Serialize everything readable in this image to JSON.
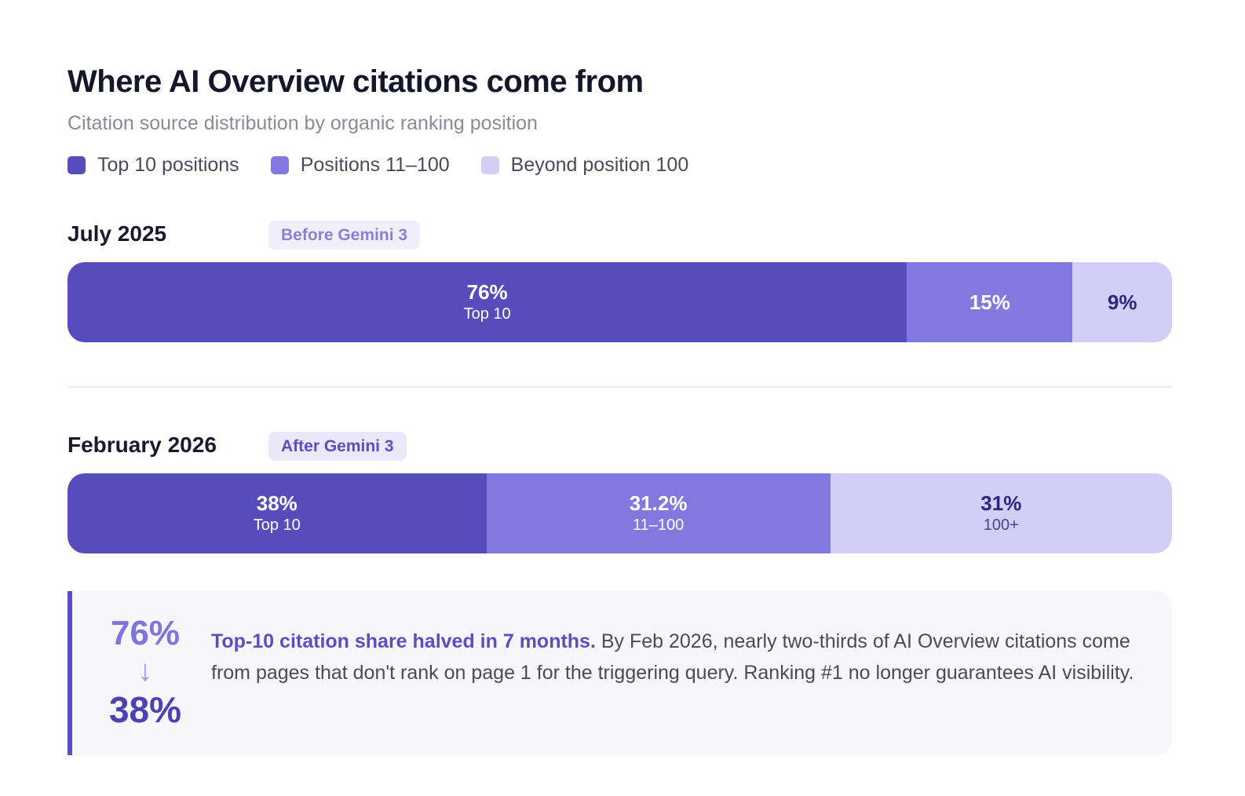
{
  "chart_data": {
    "type": "bar",
    "orientation": "horizontal-stacked-100",
    "title": "Where AI Overview citations come from",
    "subtitle": "Citation source distribution by organic ranking position",
    "legend_position": "top-left",
    "legend": [
      {
        "name": "Top 10 positions",
        "color": "#574cbb"
      },
      {
        "name": "Positions 11–100",
        "color": "#8178e0"
      },
      {
        "name": "Beyond position 100",
        "color": "#d2cef6"
      }
    ],
    "categories": [
      "July 2025",
      "February 2026"
    ],
    "badges": [
      "Before Gemini 3",
      "After Gemini 3"
    ],
    "series": [
      {
        "name": "Top 10 positions",
        "values": [
          76,
          38
        ],
        "value_labels": [
          "76%",
          "38%"
        ],
        "sub_labels": [
          "Top 10",
          "Top 10"
        ]
      },
      {
        "name": "Positions 11–100",
        "values": [
          15,
          31.2
        ],
        "value_labels": [
          "15%",
          "31.2%"
        ],
        "sub_labels": [
          "",
          "11–100"
        ]
      },
      {
        "name": "Beyond position 100",
        "values": [
          9,
          31
        ],
        "value_labels": [
          "9%",
          "31%"
        ],
        "sub_labels": [
          "",
          "100+"
        ]
      }
    ]
  },
  "callout": {
    "stat_before": "76%",
    "arrow": "↓",
    "stat_after": "38%",
    "headline": "Top-10 citation share halved in 7 months.",
    "body": " By Feb 2026, nearly two-thirds of AI Overview citations come from pages that don't rank on page 1 for the triggering query. Ranking #1 no longer guarantees AI visibility."
  },
  "colors": {
    "top10": "#574cbb",
    "mid": "#8178e0",
    "beyond": "#d2cef6",
    "badge_before_bg": "#f1effb",
    "badge_before_text": "#8a80d6",
    "badge_after_bg": "#ebe8fa",
    "badge_after_text": "#5b4fc0",
    "dark_label": "#2d2680"
  }
}
